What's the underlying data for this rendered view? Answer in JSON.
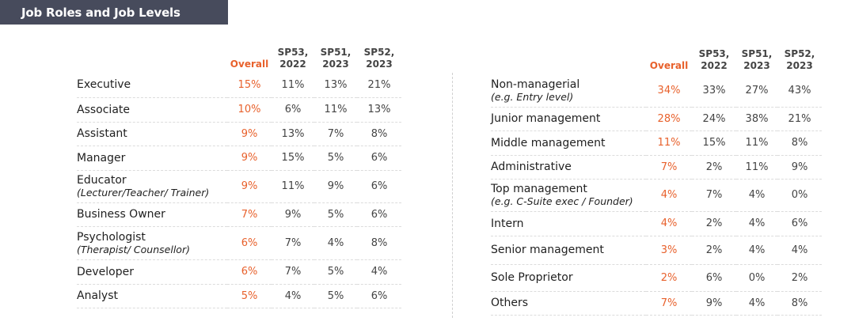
{
  "title": "Job Roles and Job Levels",
  "left": {
    "headers": [
      "Overall",
      "SP53, 2022",
      "SP51, 2023",
      "SP52, 2023"
    ],
    "rows": [
      {
        "label": "Executive",
        "sub": "",
        "overall": "15%",
        "sp53": "11%",
        "sp51": "13%",
        "sp52": "21%"
      },
      {
        "label": "Associate",
        "sub": "",
        "overall": "10%",
        "sp53": "6%",
        "sp51": "11%",
        "sp52": "13%"
      },
      {
        "label": "Assistant",
        "sub": "",
        "overall": "9%",
        "sp53": "13%",
        "sp51": "7%",
        "sp52": "8%"
      },
      {
        "label": "Manager",
        "sub": "",
        "overall": "9%",
        "sp53": "15%",
        "sp51": "5%",
        "sp52": "6%"
      },
      {
        "label": "Educator",
        "sub": "(Lecturer/Teacher/ Trainer)",
        "overall": "9%",
        "sp53": "11%",
        "sp51": "9%",
        "sp52": "6%"
      },
      {
        "label": "Business Owner",
        "sub": "",
        "overall": "7%",
        "sp53": "9%",
        "sp51": "5%",
        "sp52": "6%"
      },
      {
        "label": "Psychologist",
        "sub": "(Therapist/ Counsellor)",
        "overall": "6%",
        "sp53": "7%",
        "sp51": "4%",
        "sp52": "8%"
      },
      {
        "label": "Developer",
        "sub": "",
        "overall": "6%",
        "sp53": "7%",
        "sp51": "5%",
        "sp52": "4%"
      },
      {
        "label": "Analyst",
        "sub": "",
        "overall": "5%",
        "sp53": "4%",
        "sp51": "5%",
        "sp52": "6%"
      }
    ]
  },
  "right": {
    "headers": [
      "Overall",
      "SP53, 2022",
      "SP51, 2023",
      "SP52, 2023"
    ],
    "rows": [
      {
        "label": "Non-managerial",
        "sub": "(e.g. Entry level)",
        "overall": "34%",
        "sp53": "33%",
        "sp51": "27%",
        "sp52": "43%"
      },
      {
        "label": "Junior management",
        "sub": "",
        "overall": "28%",
        "sp53": "24%",
        "sp51": "38%",
        "sp52": "21%"
      },
      {
        "label": "Middle management",
        "sub": "",
        "overall": "11%",
        "sp53": "15%",
        "sp51": "11%",
        "sp52": "8%"
      },
      {
        "label": "Administrative",
        "sub": "",
        "overall": "7%",
        "sp53": "2%",
        "sp51": "11%",
        "sp52": "9%"
      },
      {
        "label": "Top management",
        "sub": "(e.g. C-Suite exec / Founder)",
        "overall": "4%",
        "sp53": "7%",
        "sp51": "4%",
        "sp52": "0%"
      },
      {
        "label": "Intern",
        "sub": "",
        "overall": "4%",
        "sp53": "2%",
        "sp51": "4%",
        "sp52": "6%"
      },
      {
        "label": "Senior management",
        "sub": "",
        "overall": "3%",
        "sp53": "2%",
        "sp51": "4%",
        "sp52": "4%"
      },
      {
        "label": "Sole Proprietor",
        "sub": "",
        "overall": "2%",
        "sp53": "6%",
        "sp51": "0%",
        "sp52": "2%"
      },
      {
        "label": "Others",
        "sub": "",
        "overall": "7%",
        "sp53": "9%",
        "sp51": "4%",
        "sp52": "8%"
      }
    ]
  },
  "colors": {
    "accent": "#e8612c",
    "title_bg": "#474b5c",
    "title_text": "#ffffff"
  }
}
